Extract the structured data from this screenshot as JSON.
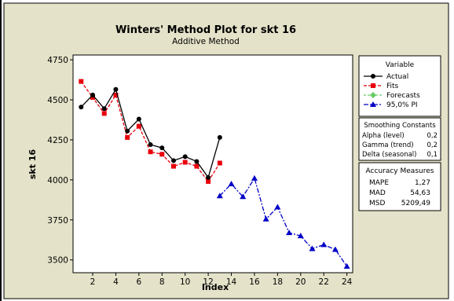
{
  "chart_data": {
    "type": "line",
    "title": "Winters' Method Plot for skt 16",
    "subtitle": "Additive Method",
    "xlabel": "Index",
    "ylabel": "skt 16",
    "xlim": [
      0.3,
      24.5
    ],
    "ylim": [
      3420,
      4780
    ],
    "xticks": [
      2,
      4,
      6,
      8,
      10,
      12,
      14,
      16,
      18,
      20,
      22,
      24
    ],
    "yticks": [
      3500,
      3750,
      4000,
      4250,
      4500,
      4750
    ],
    "legend_position": "right",
    "colors": {
      "actual": "#000000",
      "fits": "#e8000b",
      "forecasts": "#66cc66",
      "pi": "#0000c8",
      "plot_bg": "#ffffff",
      "panel_bg": "#e4e2c8"
    },
    "series": [
      {
        "name": "Actual",
        "x": [
          1,
          2,
          3,
          4,
          5,
          6,
          7,
          8,
          9,
          10,
          11,
          12,
          13
        ],
        "values": [
          4455,
          4530,
          4445,
          4565,
          4305,
          4380,
          4220,
          4200,
          4120,
          4145,
          4115,
          4015,
          4265
        ]
      },
      {
        "name": "Fits",
        "x": [
          1,
          2,
          3,
          4,
          5,
          6,
          7,
          8,
          9,
          10,
          11,
          12,
          13
        ],
        "values": [
          4615,
          4515,
          4415,
          4530,
          4265,
          4335,
          4175,
          4160,
          4085,
          4110,
          4085,
          3990,
          4105
        ]
      },
      {
        "name": "Forecasts",
        "x": [],
        "values": []
      },
      {
        "name": "95,0% PI",
        "x": [
          13,
          14,
          15,
          16,
          17,
          18,
          19,
          20,
          21,
          22,
          23,
          24
        ],
        "values": [
          3900,
          3975,
          3895,
          4010,
          3755,
          3830,
          3670,
          3650,
          3570,
          3595,
          3565,
          3460
        ]
      }
    ],
    "legend": {
      "title": "Variable",
      "entries": [
        "Actual",
        "Fits",
        "Forecasts",
        "95,0% PI"
      ]
    },
    "smoothing": {
      "title": "Smoothing Constants",
      "rows": [
        {
          "label": "Alpha (level)",
          "value": "0,2"
        },
        {
          "label": "Gamma (trend)",
          "value": "0,2"
        },
        {
          "label": "Delta (seasonal)",
          "value": "0,1"
        }
      ]
    },
    "accuracy": {
      "title": "Accuracy Measures",
      "rows": [
        {
          "label": "MAPE",
          "value": "1,27"
        },
        {
          "label": "MAD",
          "value": "54,63"
        },
        {
          "label": "MSD",
          "value": "5209,49"
        }
      ]
    }
  }
}
